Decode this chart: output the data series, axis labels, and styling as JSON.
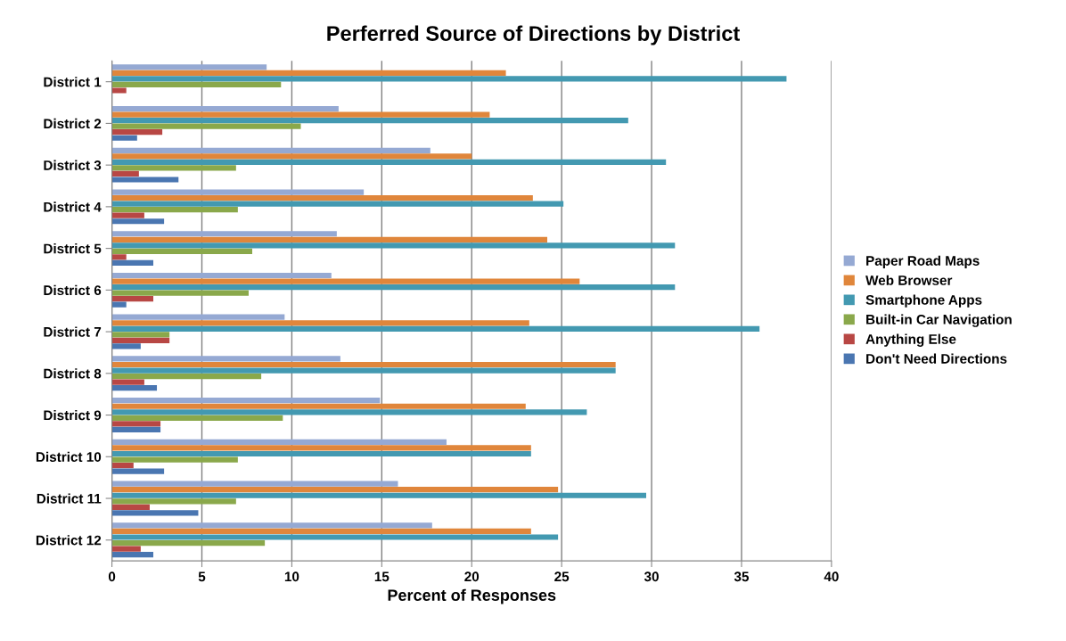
{
  "chart_data": {
    "type": "bar",
    "orientation": "horizontal",
    "title": "Perferred Source of Directions by District",
    "xlabel": "Percent of Responses",
    "categories": [
      "District 1",
      "District 2",
      "District 3",
      "District 4",
      "District 5",
      "District 6",
      "District 7",
      "District 8",
      "District 9",
      "District 10",
      "District 11",
      "District 12"
    ],
    "series": [
      {
        "name": "Paper Road Maps",
        "color": "#95a9d3",
        "values": [
          8.6,
          12.6,
          17.7,
          14.0,
          12.5,
          12.2,
          9.6,
          12.7,
          14.9,
          18.6,
          15.9,
          17.8
        ]
      },
      {
        "name": "Web Browser",
        "color": "#e0863b",
        "values": [
          21.9,
          21.0,
          20.0,
          23.4,
          24.2,
          26.0,
          23.2,
          28.0,
          23.0,
          23.3,
          24.8,
          23.3
        ]
      },
      {
        "name": "Smartphone Apps",
        "color": "#4399b1",
        "values": [
          37.5,
          28.7,
          30.8,
          25.1,
          31.3,
          31.3,
          36.0,
          28.0,
          26.4,
          23.3,
          29.7,
          24.8
        ]
      },
      {
        "name": "Built-in Car Navigation",
        "color": "#8aa84b",
        "values": [
          9.4,
          10.5,
          6.9,
          7.0,
          7.8,
          7.6,
          3.2,
          8.3,
          9.5,
          7.0,
          6.9,
          8.5
        ]
      },
      {
        "name": "Anything Else",
        "color": "#b84744",
        "values": [
          0.8,
          2.8,
          1.5,
          1.8,
          0.8,
          2.3,
          3.2,
          1.8,
          2.7,
          1.2,
          2.1,
          1.6
        ]
      },
      {
        "name": "Don't Need Directions",
        "color": "#4a76b1",
        "values": [
          0,
          1.4,
          3.7,
          2.9,
          2.3,
          0.8,
          1.6,
          2.5,
          2.7,
          2.9,
          4.8,
          2.3
        ]
      }
    ],
    "xlim": [
      0,
      40
    ],
    "xticks": [
      0,
      5,
      10,
      15,
      20,
      25,
      30,
      35,
      40
    ],
    "grid": "x",
    "legend": "right"
  }
}
